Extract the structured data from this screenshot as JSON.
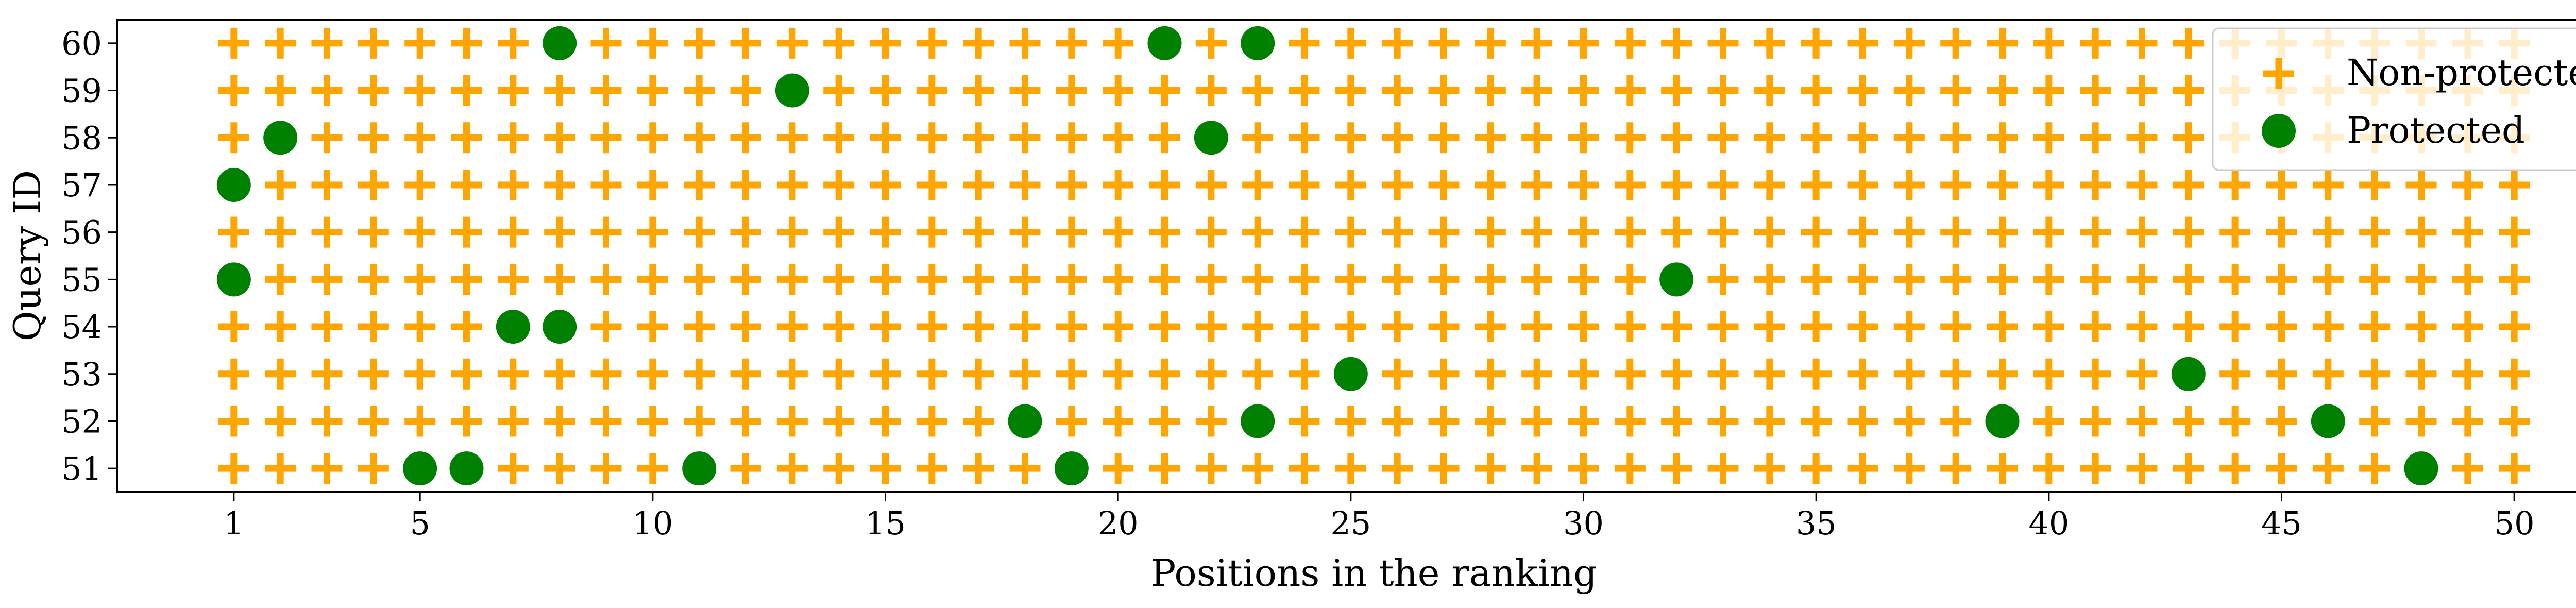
{
  "chart_data": {
    "type": "scatter",
    "xlabel": "Positions in the ranking",
    "ylabel": "Query ID",
    "xlim": [
      -1.5,
      52.5
    ],
    "ylim": [
      50.5,
      60.5
    ],
    "xticks": [
      1,
      5,
      10,
      15,
      20,
      25,
      30,
      35,
      40,
      45,
      50
    ],
    "yticks": [
      51,
      52,
      53,
      54,
      55,
      56,
      57,
      58,
      59,
      60
    ],
    "positions": [
      1,
      50
    ],
    "queries": [
      51,
      60
    ],
    "grid": false,
    "legend_position": "top-right",
    "series": [
      {
        "name": "Non-protected",
        "marker": "plus",
        "color": "#ffa500"
      },
      {
        "name": "Protected",
        "marker": "circle",
        "color": "#008000"
      }
    ],
    "protected_points": [
      {
        "query": 60,
        "positions": [
          8,
          21,
          23
        ]
      },
      {
        "query": 59,
        "positions": [
          13
        ]
      },
      {
        "query": 58,
        "positions": [
          2,
          22
        ]
      },
      {
        "query": 57,
        "positions": [
          1
        ]
      },
      {
        "query": 56,
        "positions": []
      },
      {
        "query": 55,
        "positions": [
          1,
          32
        ]
      },
      {
        "query": 54,
        "positions": [
          7,
          8
        ]
      },
      {
        "query": 53,
        "positions": [
          25,
          43
        ]
      },
      {
        "query": 52,
        "positions": [
          18,
          23,
          39,
          46
        ]
      },
      {
        "query": 51,
        "positions": [
          5,
          6,
          11,
          19,
          48
        ]
      }
    ]
  }
}
